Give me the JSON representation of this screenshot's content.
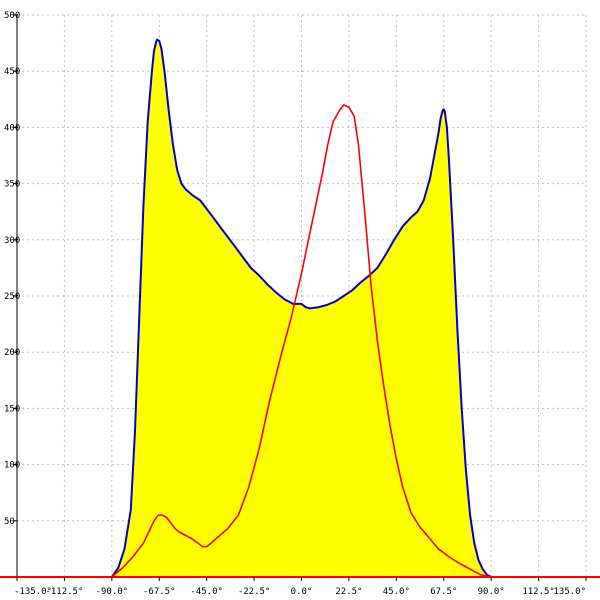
{
  "chart_data": {
    "type": "area",
    "title": "",
    "xlabel": "",
    "ylabel": "",
    "xlim": [
      -135,
      135
    ],
    "ylim": [
      0,
      500
    ],
    "grid": true,
    "x_ticks": [
      -135,
      -112.5,
      -90,
      -67.5,
      -45,
      -22.5,
      0,
      22.5,
      45,
      67.5,
      90,
      112.5,
      135
    ],
    "x_tick_labels": [
      "-135.0°",
      "-112.5°",
      "-90.0°",
      "-67.5°",
      "-45.0°",
      "-22.5°",
      "0.0°",
      "22.5°",
      "45.0°",
      "67.5°",
      "90.0°",
      "112.5°",
      "135.0°"
    ],
    "y_ticks": [
      50,
      100,
      150,
      200,
      250,
      300,
      350,
      400,
      450,
      500
    ],
    "y_tick_labels": [
      "50",
      "100",
      "150",
      "200",
      "250",
      "300",
      "350",
      "400",
      "450",
      "500"
    ],
    "colors": {
      "fill": "#ffff00",
      "series1": "#0000cc",
      "series2": "#ff0000",
      "grid": "#c0c0c0",
      "axis": "#000000"
    },
    "series": [
      {
        "style": "filled-line",
        "x": [
          -90,
          -87,
          -84,
          -81,
          -79,
          -77,
          -75,
          -73,
          -71,
          -70,
          -69,
          -68.5,
          -67.5,
          -66.5,
          -65,
          -63,
          -61,
          -59,
          -57,
          -55,
          -52,
          -48,
          -44,
          -40,
          -36,
          -32,
          -28,
          -24,
          -20,
          -16,
          -12,
          -8,
          -4,
          0,
          2,
          4,
          8,
          12,
          16,
          20,
          24,
          28,
          32,
          36,
          40,
          44,
          48,
          52,
          55,
          58,
          61,
          63,
          65,
          66,
          67,
          67.5,
          68,
          69,
          70,
          72,
          74,
          76,
          78,
          80,
          82,
          84,
          86,
          88,
          90
        ],
        "y": [
          0,
          8,
          25,
          60,
          130,
          230,
          330,
          405,
          450,
          468,
          476,
          478,
          477,
          470,
          450,
          415,
          385,
          362,
          350,
          345,
          340,
          335,
          325,
          315,
          305,
          295,
          285,
          275,
          268,
          260,
          253,
          247,
          243,
          243,
          240,
          239,
          240,
          242,
          245,
          250,
          255,
          262,
          268,
          275,
          287,
          300,
          312,
          320,
          325,
          335,
          355,
          375,
          395,
          408,
          415,
          416,
          414,
          400,
          370,
          300,
          220,
          150,
          95,
          55,
          30,
          15,
          7,
          2,
          0
        ]
      },
      {
        "style": "line",
        "x": [
          -90,
          -85,
          -80,
          -75,
          -72,
          -70,
          -68,
          -66,
          -64,
          -62,
          -60,
          -58,
          -55,
          -52,
          -49,
          -47,
          -45,
          -43,
          -40,
          -35,
          -30,
          -25,
          -20,
          -15,
          -10,
          -5,
          0,
          5,
          10,
          12.5,
          15,
          18,
          20,
          22.5,
          25,
          27,
          30,
          33,
          36,
          39,
          42,
          45,
          48,
          52,
          56,
          60,
          65,
          70,
          75,
          80,
          85,
          90
        ],
        "y": [
          0,
          8,
          18,
          30,
          42,
          50,
          55,
          55,
          53,
          48,
          43,
          40,
          37,
          34,
          30,
          27,
          27,
          30,
          35,
          43,
          55,
          80,
          115,
          158,
          195,
          230,
          270,
          315,
          360,
          385,
          405,
          415,
          420,
          418,
          410,
          385,
          325,
          260,
          210,
          170,
          135,
          105,
          80,
          57,
          45,
          36,
          25,
          18,
          12,
          7,
          2,
          0
        ]
      }
    ]
  }
}
